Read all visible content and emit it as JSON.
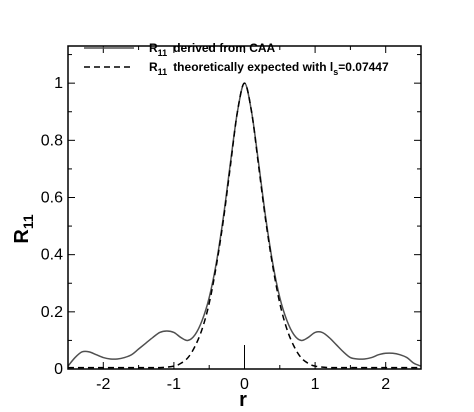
{
  "chart_data": {
    "type": "line",
    "xlabel": "r",
    "ylabel": "R",
    "ylabel_sub": "11",
    "xlim": [
      -2.5,
      2.5
    ],
    "ylim": [
      0,
      1.13
    ],
    "xticks": [
      -2,
      -1,
      0,
      1,
      2
    ],
    "xtick_labels": [
      "-2",
      "-1",
      "0",
      "1",
      "2"
    ],
    "yticks": [
      0,
      0.2,
      0.4,
      0.6,
      0.8,
      1
    ],
    "ytick_labels": [
      "0",
      "0.2",
      "0.4",
      "0.6",
      "0.8",
      "1"
    ],
    "grid": false,
    "legend_position": "top-right",
    "series": [
      {
        "name": "R11 derived from CAA",
        "legend_prefix": "R",
        "legend_sub": "11",
        "legend_suffix": "derived from CAA",
        "style": "solid",
        "color": "#505050",
        "x": [
          -2.5,
          -2.4,
          -2.3,
          -2.2,
          -2.1,
          -2.0,
          -1.9,
          -1.8,
          -1.7,
          -1.6,
          -1.5,
          -1.4,
          -1.3,
          -1.2,
          -1.1,
          -1.0,
          -0.9,
          -0.8,
          -0.7,
          -0.6,
          -0.5,
          -0.4,
          -0.3,
          -0.2,
          -0.1,
          0.0,
          0.1,
          0.2,
          0.3,
          0.4,
          0.5,
          0.6,
          0.7,
          0.8,
          0.9,
          1.0,
          1.1,
          1.2,
          1.3,
          1.4,
          1.5,
          1.6,
          1.7,
          1.8,
          1.9,
          2.0,
          2.1,
          2.2,
          2.3,
          2.4,
          2.5
        ],
        "y": [
          0.01,
          0.04,
          0.06,
          0.06,
          0.05,
          0.04,
          0.035,
          0.035,
          0.04,
          0.05,
          0.07,
          0.09,
          0.11,
          0.128,
          0.133,
          0.128,
          0.11,
          0.1,
          0.12,
          0.17,
          0.25,
          0.37,
          0.53,
          0.72,
          0.9,
          1.0,
          0.9,
          0.72,
          0.53,
          0.37,
          0.25,
          0.17,
          0.12,
          0.1,
          0.11,
          0.128,
          0.128,
          0.11,
          0.085,
          0.06,
          0.04,
          0.035,
          0.035,
          0.04,
          0.05,
          0.055,
          0.055,
          0.05,
          0.04,
          0.02,
          0.01
        ]
      },
      {
        "name": "R11 theoretically expected with ls=0.07447",
        "legend_prefix": "R",
        "legend_sub": "11",
        "legend_suffix": "theoretically expected with l",
        "legend_suffix_sub": "s",
        "legend_suffix_end": "=0.07447",
        "style": "dashed",
        "color": "#000000",
        "x": [
          -2.5,
          -2.0,
          -1.5,
          -1.2,
          -1.0,
          -0.9,
          -0.8,
          -0.7,
          -0.6,
          -0.5,
          -0.4,
          -0.3,
          -0.2,
          -0.1,
          0.0,
          0.1,
          0.2,
          0.3,
          0.4,
          0.5,
          0.6,
          0.7,
          0.8,
          0.9,
          1.0,
          1.2,
          1.5,
          2.0,
          2.5
        ],
        "y": [
          0.005,
          0.005,
          0.005,
          0.005,
          0.01,
          0.02,
          0.04,
          0.08,
          0.14,
          0.23,
          0.36,
          0.52,
          0.71,
          0.9,
          1.0,
          0.9,
          0.71,
          0.52,
          0.36,
          0.23,
          0.14,
          0.08,
          0.04,
          0.02,
          0.01,
          0.005,
          0.005,
          0.005,
          0.005
        ]
      }
    ]
  }
}
